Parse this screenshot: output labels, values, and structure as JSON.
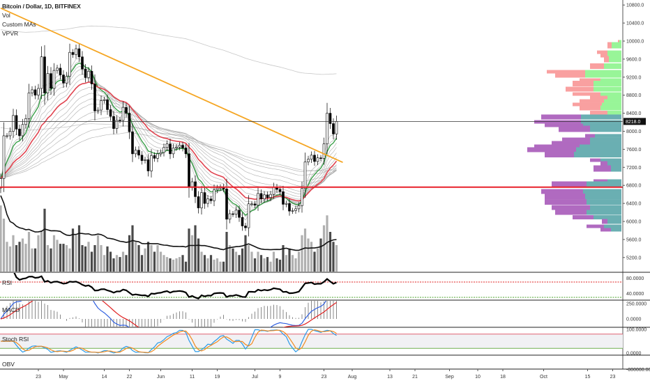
{
  "legend": {
    "title": "Bitcoin / Dollar, 1D, BITFINEX",
    "indicators": [
      "Vol",
      "Custom MAs",
      "VPVR"
    ]
  },
  "pane_labels": {
    "rsi": "RSI",
    "macd": "MACD",
    "stoch": "Stoch RSI",
    "obv": "OBV"
  },
  "colors": {
    "trendline": "#f5a623",
    "support": "#e8202a",
    "ema_fast": "#2e9a3e",
    "ema_slow": "#e0434f",
    "ribbon": "#9a9a9a",
    "vol_up": "#b0b0b0",
    "vol_down": "#4a4a4a",
    "vpvr_up_va": "#6aafb2",
    "vpvr_down_va": "#b06ac0",
    "vpvr_up": "#98f598",
    "vpvr_down": "#f9a0a0",
    "macd": "#3060e0",
    "signal": "#e02020",
    "stoch_k": "#2a9ae8",
    "stoch_d": "#f08a20",
    "rsi_upper": "#e02020",
    "rsi_lower": "#4aa02a"
  },
  "chart_data": {
    "type": "candlestick",
    "symbol": "Bitcoin / Dollar, 1D, BITFINEX",
    "start_date": "Apr 11",
    "closes": [
      6950,
      7900,
      7900,
      8000,
      8350,
      8050,
      7900,
      8150,
      8280,
      8850,
      8920,
      8800,
      8950,
      9650,
      8850,
      9280,
      8950,
      9350,
      9400,
      9250,
      9070,
      9220,
      9750,
      9700,
      9830,
      9650,
      9380,
      9190,
      9330,
      9050,
      8450,
      8470,
      8680,
      8700,
      8480,
      8330,
      8060,
      8250,
      8240,
      8530,
      8400,
      7990,
      7500,
      7580,
      7470,
      7350,
      7370,
      7120,
      7460,
      7400,
      7500,
      7530,
      7640,
      7720,
      7500,
      7630,
      7650,
      7690,
      7630,
      7500,
      6770,
      6880,
      6550,
      6300,
      6640,
      6400,
      6500,
      6460,
      6700,
      6740,
      6760,
      6720,
      6050,
      6170,
      6160,
      6250,
      6090,
      5900,
      5860,
      6390,
      6390,
      6360,
      6620,
      6500,
      6590,
      6530,
      6600,
      6760,
      6710,
      6660,
      6380,
      6400,
      6230,
      6240,
      6280,
      6350,
      6730,
      7320,
      7380,
      7470,
      7330,
      7410,
      7400,
      7720,
      8400,
      8170,
      7940,
      8218
    ],
    "volumes": [
      100,
      80,
      45,
      38,
      55,
      40,
      45,
      50,
      42,
      60,
      35,
      35,
      55,
      62,
      95,
      40,
      35,
      55,
      48,
      42,
      42,
      40,
      35,
      65,
      55,
      70,
      40,
      38,
      45,
      30,
      40,
      55,
      40,
      25,
      38,
      30,
      20,
      25,
      22,
      30,
      25,
      55,
      70,
      45,
      40,
      25,
      35,
      45,
      40,
      30,
      40,
      30,
      25,
      22,
      20,
      18,
      20,
      22,
      25,
      15,
      65,
      55,
      70,
      50,
      30,
      25,
      20,
      25,
      18,
      20,
      15,
      15,
      60,
      40,
      35,
      30,
      25,
      35,
      55,
      40,
      30,
      20,
      30,
      25,
      20,
      22,
      15,
      30,
      20,
      18,
      40,
      25,
      35,
      25,
      20,
      30,
      55,
      65,
      50,
      45,
      30,
      35,
      50,
      70,
      85,
      60,
      45,
      40
    ],
    "last_price": "8218.0",
    "price_axis": {
      "min": 5000,
      "max": 10900,
      "ticks": [
        "10800.0",
        "10400.0",
        "10000.0",
        "9600.0",
        "9200.0",
        "8800.0",
        "8400.0",
        "8000.0",
        "7600.0",
        "7200.0",
        "6800.0",
        "6400.0",
        "6000.0",
        "5600.0",
        "5200.0"
      ]
    },
    "time_ticks": [
      {
        "label": "23",
        "date": "Apr 23"
      },
      {
        "label": "May",
        "date": "May 1"
      },
      {
        "label": "14",
        "date": "May 14"
      },
      {
        "label": "22",
        "date": "May 22"
      },
      {
        "label": "Jun",
        "date": "Jun 1"
      },
      {
        "label": "11",
        "date": "Jun 11"
      },
      {
        "label": "19",
        "date": "Jun 19"
      },
      {
        "label": "Jul",
        "date": "Jul 1"
      },
      {
        "label": "9",
        "date": "Jul 9"
      },
      {
        "label": "23",
        "date": "Jul 23"
      },
      {
        "label": "Aug",
        "date": "Aug 1"
      },
      {
        "label": "13",
        "date": "Aug 13"
      },
      {
        "label": "21",
        "date": "Aug 21"
      },
      {
        "label": "Sep",
        "date": "Sep 1"
      },
      {
        "label": "10",
        "date": "Sep 10"
      },
      {
        "label": "18",
        "date": "Sep 18"
      },
      {
        "label": "Oct",
        "date": "Oct 1"
      },
      {
        "label": "15",
        "date": "Oct 15"
      },
      {
        "label": "23",
        "date": "Oct 23"
      }
    ],
    "trendline": [
      {
        "date": "Apr 11",
        "price": 10730
      },
      {
        "date": "Jul 29",
        "price": 7310
      }
    ],
    "support_level": 6760,
    "ma_periods": {
      "ribbon": [
        5,
        7,
        10,
        12,
        15,
        18,
        25,
        30,
        35,
        40,
        50,
        60,
        80,
        100
      ],
      "fast": 8,
      "slow": 21
    },
    "vpvr": {
      "value_area_top": 8370,
      "rows": [
        {
          "price": 9985,
          "up": 3,
          "down": 2
        },
        {
          "price": 9907,
          "up": 14,
          "down": 6
        },
        {
          "price": 9753,
          "up": 20,
          "down": 15
        },
        {
          "price": 9676,
          "up": 20,
          "down": 10
        },
        {
          "price": 9598,
          "up": 18,
          "down": 7
        },
        {
          "price": 9444,
          "up": 25,
          "down": 20
        },
        {
          "price": 9320,
          "up": 52,
          "down": 55
        },
        {
          "price": 9243,
          "up": 52,
          "down": 43
        },
        {
          "price": 9135,
          "up": 30,
          "down": 30
        },
        {
          "price": 9058,
          "up": 40,
          "down": 30
        },
        {
          "price": 8934,
          "up": 40,
          "down": 40
        },
        {
          "price": 8826,
          "up": 30,
          "down": 40
        },
        {
          "price": 8749,
          "up": 20,
          "down": 25
        },
        {
          "price": 8672,
          "up": 25,
          "down": 35
        },
        {
          "price": 8595,
          "up": 28,
          "down": 42
        },
        {
          "price": 8517,
          "up": 30,
          "down": 30
        },
        {
          "price": 8409,
          "up": 20,
          "down": 25
        },
        {
          "price": 8317,
          "up": 58,
          "down": 57
        },
        {
          "price": 8208,
          "up": 58,
          "down": 67
        },
        {
          "price": 8131,
          "up": 55,
          "down": 55
        },
        {
          "price": 8054,
          "up": 45,
          "down": 45
        },
        {
          "price": 7900,
          "up": 38,
          "down": 14
        },
        {
          "price": 7822,
          "up": 45,
          "down": 40
        },
        {
          "price": 7745,
          "up": 45,
          "down": 55
        },
        {
          "price": 7668,
          "up": 60,
          "down": 65
        },
        {
          "price": 7591,
          "up": 65,
          "down": 70
        },
        {
          "price": 7483,
          "up": 68,
          "down": 42
        },
        {
          "price": 7359,
          "up": 30,
          "down": 15
        },
        {
          "price": 7282,
          "up": 20,
          "down": 10
        },
        {
          "price": 7174,
          "up": 15,
          "down": 25
        },
        {
          "price": 6896,
          "up": 20,
          "down": 20
        },
        {
          "price": 6819,
          "up": 50,
          "down": 50
        },
        {
          "price": 6664,
          "up": 55,
          "down": 60
        },
        {
          "price": 6556,
          "up": 52,
          "down": 58
        },
        {
          "price": 6432,
          "up": 50,
          "down": 60
        },
        {
          "price": 6309,
          "up": 45,
          "down": 55
        },
        {
          "price": 6201,
          "up": 50,
          "down": 45
        },
        {
          "price": 6092,
          "up": 40,
          "down": 30
        },
        {
          "price": 6000,
          "up": 20,
          "down": 8
        },
        {
          "price": 5892,
          "up": 25,
          "down": 25
        },
        {
          "price": 5815,
          "up": 15,
          "down": 15
        }
      ]
    },
    "rsi": {
      "period": 14,
      "levels": [
        70,
        30
      ],
      "ticks": [
        "80.0000",
        "40.0000"
      ]
    },
    "macd": {
      "fast": 12,
      "slow": 26,
      "signal": 9,
      "ticks": [
        "250.0000",
        "0.0000"
      ]
    },
    "stoch_rsi": {
      "levels": [
        80,
        20
      ],
      "ticks": [
        "100.0000",
        "0.0000"
      ]
    },
    "obv": {
      "ticks": [
        "-800000.0000"
      ]
    }
  }
}
